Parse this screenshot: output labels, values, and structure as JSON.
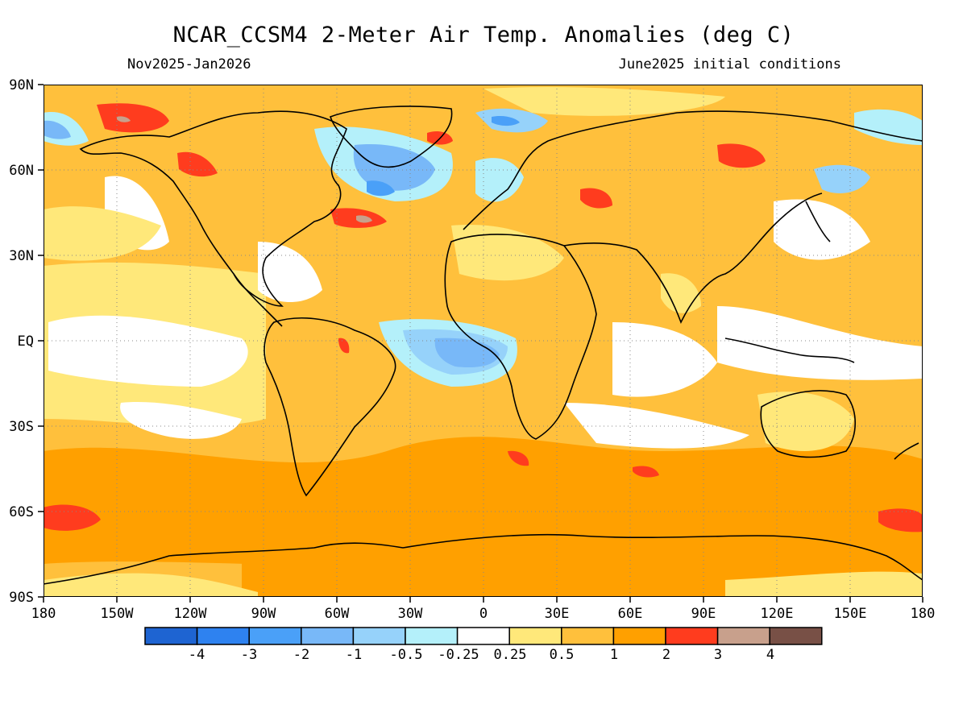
{
  "title": "NCAR_CCSM4 2-Meter Air Temp. Anomalies (deg C)",
  "subtitle_left": "Nov2025-Jan2026",
  "subtitle_right": "June2025 initial conditions",
  "lat_labels": [
    "90N",
    "60N",
    "30N",
    "EQ",
    "30S",
    "60S",
    "90S"
  ],
  "lon_labels": [
    "180",
    "150W",
    "120W",
    "90W",
    "60W",
    "30W",
    "0",
    "30E",
    "60E",
    "90E",
    "120E",
    "150E",
    "180"
  ],
  "colorbar": {
    "colors": [
      "#1e64d2",
      "#2e82f0",
      "#4aa0f8",
      "#78b8f8",
      "#96d2fa",
      "#b4f0fa",
      "#ffffff",
      "#ffe87a",
      "#ffc03c",
      "#ffa000",
      "#ff3c1e",
      "#c8a08c",
      "#785046"
    ],
    "labels": [
      "-4",
      "-3",
      "-2",
      "-1",
      "-0.5",
      "-0.25",
      "0.25",
      "0.5",
      "1",
      "2",
      "3",
      "4"
    ]
  },
  "palette": {
    "ocean_base": "#ffe87a",
    "warm_1": "#ffc03c",
    "warm_2": "#ffa000",
    "hot": "#ff3c1e",
    "very_hot": "#c8a08c",
    "neutral": "#ffffff",
    "cool_1": "#b4f0fa",
    "cool_2": "#96d2fa",
    "cool_3": "#78b8f8",
    "cool_4": "#4aa0f8",
    "coastline": "#000000",
    "grid": "#888888"
  }
}
